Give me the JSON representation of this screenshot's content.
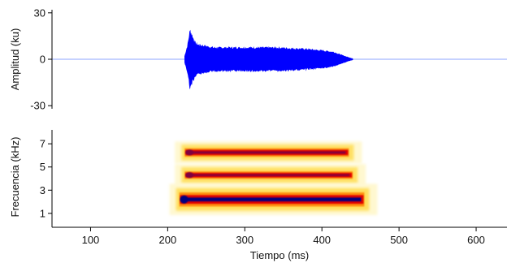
{
  "chart_data": [
    {
      "type": "line",
      "panel": "waveform",
      "ylabel": "Amplitud (ku)",
      "xlim": [
        50,
        640
      ],
      "ylim": [
        -32,
        32
      ],
      "y_ticks": [
        30,
        0,
        -30
      ],
      "y_tick_labels": [
        "30",
        "0",
        "-30"
      ],
      "baseline_color": "#b4c4ff",
      "series": [
        {
          "color": "#0000ff",
          "x": [
            222,
            226,
            229,
            232,
            236,
            240,
            250,
            260,
            280,
            300,
            320,
            340,
            360,
            380,
            400,
            415,
            425,
            433,
            440
          ],
          "y": [
            2,
            10,
            20,
            16,
            11,
            10,
            9,
            8,
            8,
            8,
            8,
            8,
            7.5,
            7,
            6,
            5,
            3,
            1.5,
            0.4
          ]
        }
      ],
      "grid": false
    },
    {
      "type": "heatmap",
      "panel": "spectrogram",
      "xlabel": "Tiempo (ms)",
      "ylabel": "Frecuencia (kHz)",
      "xlim": [
        50,
        640
      ],
      "ylim": [
        -0.2,
        8.2
      ],
      "x_ticks": [
        100,
        200,
        300,
        400,
        500,
        600
      ],
      "x_tick_labels": [
        "100",
        "200",
        "300",
        "400",
        "500",
        "600"
      ],
      "y_ticks": [
        1,
        3,
        5,
        7
      ],
      "y_tick_labels": [
        "1",
        "3",
        "5",
        "7"
      ],
      "bands": [
        {
          "t_start": 222,
          "t_end": 435,
          "freq_khz": 6.25,
          "intensity": 0.85
        },
        {
          "t_start": 222,
          "t_end": 440,
          "freq_khz": 4.3,
          "intensity": 0.75
        },
        {
          "t_start": 215,
          "t_end": 455,
          "freq_khz": 2.2,
          "intensity": 1.0
        }
      ],
      "colormap": [
        "#fff8d0",
        "#ffe060",
        "#ff8000",
        "#e00000",
        "#800040",
        "#000080"
      ],
      "grid": false
    }
  ]
}
